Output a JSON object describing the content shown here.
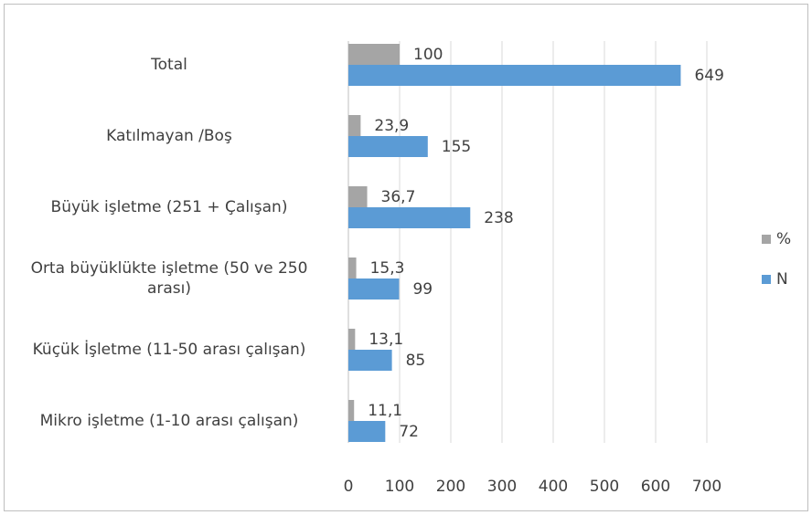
{
  "chart_data": {
    "type": "hbar",
    "categories": [
      "Total",
      "Katılmayan /Boş",
      "Büyük işletme (251 + Çalışan)",
      "Orta büyüklükte işletme (50 ve 250 arası)",
      "Küçük İşletme (11-50 arası çalışan)",
      "Mikro işletme (1-10 arası çalışan)"
    ],
    "series": [
      {
        "name": "%",
        "color": "#a5a5a5",
        "values": [
          100,
          23.9,
          36.7,
          15.3,
          13.1,
          11.1
        ],
        "value_labels": [
          "100",
          "23,9",
          "36,7",
          "15,3",
          "13,1",
          "11,1"
        ]
      },
      {
        "name": "N",
        "color": "#5b9bd5",
        "values": [
          649,
          155,
          238,
          99,
          85,
          72
        ]
      }
    ],
    "xlim": [
      0,
      700
    ],
    "xticks": [
      0,
      100,
      200,
      300,
      400,
      500,
      600,
      700
    ],
    "grid": true,
    "legend": "right"
  }
}
